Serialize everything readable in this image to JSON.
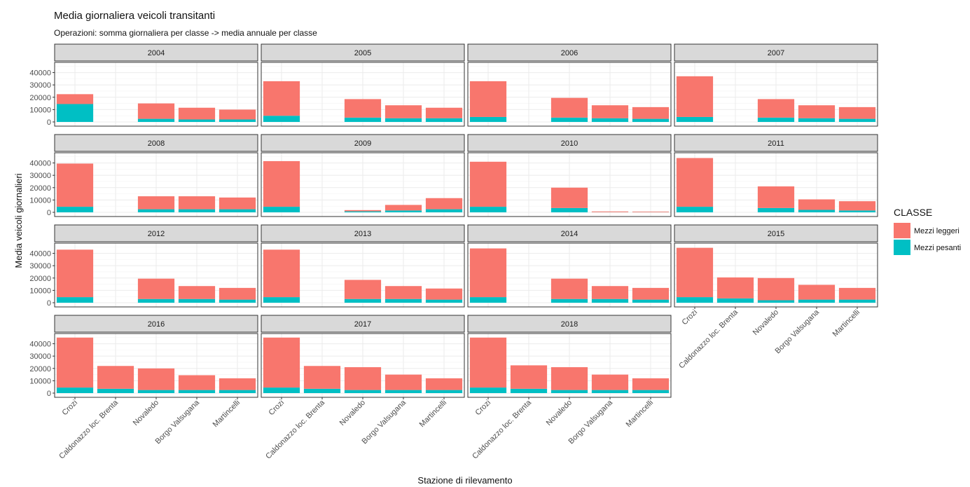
{
  "header": {
    "title": "Media giornaliera veicoli transitanti",
    "subtitle": "Operazioni: somma giornaliera per classe -> media annuale per classe"
  },
  "colors": {
    "Mezzi leggeri": "#F8766D",
    "Mezzi pesanti": "#00BFC4",
    "strip_bg": "#D9D9D9",
    "grid": "#EBEBEB"
  },
  "chart_data": {
    "type": "bar",
    "stacked": true,
    "faceted_by": "year",
    "xlabel": "Stazione di rilevamento",
    "ylabel": "Media veicoli giornalieri",
    "ylim": [
      0,
      46000
    ],
    "yticks": [
      0,
      10000,
      20000,
      30000,
      40000
    ],
    "categories": [
      "Crozi",
      "Caldonazzo loc. Brenta",
      "Novaledo",
      "Borgo Valsugana",
      "Martincelli"
    ],
    "legend": {
      "title": "CLASSE",
      "position": "right",
      "entries": [
        "Mezzi leggeri",
        "Mezzi pesanti"
      ]
    },
    "facets": [
      {
        "label": "2004",
        "leggeri": [
          8000,
          null,
          12500,
          9500,
          8000
        ],
        "pesanti": [
          14500,
          null,
          2500,
          2000,
          2000
        ]
      },
      {
        "label": "2005",
        "leggeri": [
          28000,
          null,
          15000,
          10500,
          8500
        ],
        "pesanti": [
          5000,
          null,
          3500,
          3000,
          3000
        ]
      },
      {
        "label": "2006",
        "leggeri": [
          29000,
          null,
          16000,
          10500,
          9500
        ],
        "pesanti": [
          4000,
          null,
          3500,
          3000,
          2500
        ]
      },
      {
        "label": "2007",
        "leggeri": [
          33000,
          null,
          15000,
          10500,
          9500
        ],
        "pesanti": [
          4000,
          null,
          3500,
          3000,
          2500
        ]
      },
      {
        "label": "2008",
        "leggeri": [
          35000,
          null,
          10500,
          10500,
          9500
        ],
        "pesanti": [
          4500,
          null,
          2500,
          2500,
          2500
        ]
      },
      {
        "label": "2009",
        "leggeri": [
          37000,
          null,
          1000,
          4500,
          9000
        ],
        "pesanti": [
          4500,
          null,
          800,
          1500,
          2500
        ]
      },
      {
        "label": "2010",
        "leggeri": [
          36500,
          null,
          16500,
          600,
          500
        ],
        "pesanti": [
          4500,
          null,
          3500,
          100,
          100
        ]
      },
      {
        "label": "2011",
        "leggeri": [
          39500,
          null,
          17500,
          8500,
          7500
        ],
        "pesanti": [
          4500,
          null,
          3500,
          2000,
          1500
        ]
      },
      {
        "label": "2012",
        "leggeri": [
          38500,
          null,
          16500,
          10500,
          9500
        ],
        "pesanti": [
          4500,
          null,
          3000,
          3000,
          2500
        ]
      },
      {
        "label": "2013",
        "leggeri": [
          38500,
          null,
          15500,
          10500,
          9000
        ],
        "pesanti": [
          4500,
          null,
          3000,
          3000,
          2500
        ]
      },
      {
        "label": "2014",
        "leggeri": [
          39500,
          null,
          16500,
          10500,
          9500
        ],
        "pesanti": [
          4500,
          null,
          3000,
          3000,
          2500
        ]
      },
      {
        "label": "2015",
        "leggeri": [
          40000,
          17000,
          18000,
          12000,
          9500
        ],
        "pesanti": [
          4500,
          3500,
          2000,
          2500,
          2500
        ]
      },
      {
        "label": "2016",
        "leggeri": [
          40500,
          18500,
          17500,
          12000,
          9500
        ],
        "pesanti": [
          4500,
          3500,
          2500,
          2500,
          2500
        ]
      },
      {
        "label": "2017",
        "leggeri": [
          40500,
          18500,
          18500,
          12500,
          9500
        ],
        "pesanti": [
          4500,
          3500,
          2500,
          2500,
          2500
        ]
      },
      {
        "label": "2018",
        "leggeri": [
          40500,
          19000,
          18500,
          12500,
          9500
        ],
        "pesanti": [
          4500,
          3500,
          2500,
          2500,
          2500
        ]
      }
    ]
  }
}
